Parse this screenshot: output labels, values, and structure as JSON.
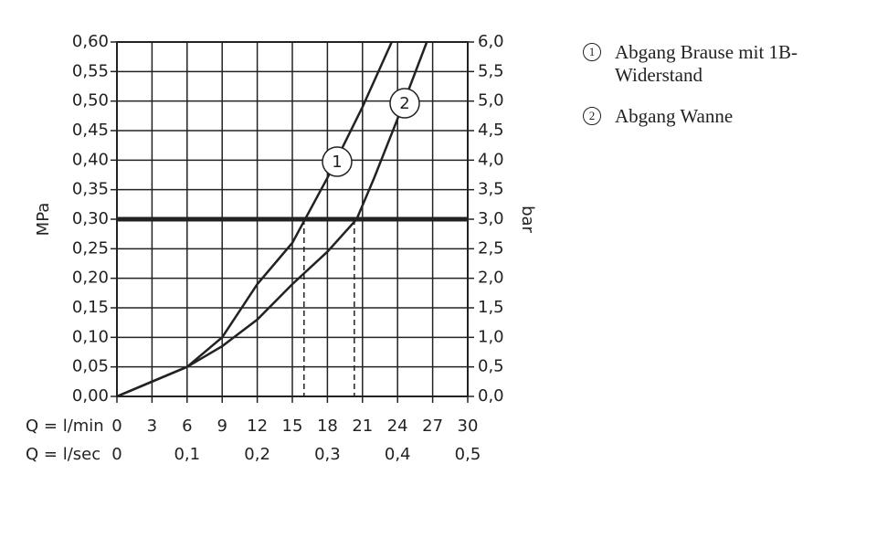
{
  "chart_data": {
    "type": "line",
    "ylabel": "MPa",
    "y2label": "bar",
    "xlabel": "Q = l/min",
    "x2label": "Q = l/sec",
    "xlim": [
      0,
      30
    ],
    "xticks": [
      0,
      3,
      6,
      9,
      12,
      15,
      18,
      21,
      24,
      27,
      30
    ],
    "x2lim": [
      0,
      0.5
    ],
    "x2ticks": [
      0,
      {
        "value": 0.1,
        "label": "0,1"
      },
      {
        "value": 0.2,
        "label": "0,2"
      },
      {
        "value": 0.3,
        "label": "0,3"
      },
      {
        "value": 0.4,
        "label": "0,4"
      },
      {
        "value": 0.5,
        "label": "0,5"
      }
    ],
    "ylim": [
      0,
      0.6
    ],
    "yticks": [
      {
        "value": 0,
        "label": "0,00"
      },
      {
        "value": 0.05,
        "label": "0,05"
      },
      {
        "value": 0.1,
        "label": "0,10"
      },
      {
        "value": 0.15,
        "label": "0,15"
      },
      {
        "value": 0.2,
        "label": "0,20"
      },
      {
        "value": 0.25,
        "label": "0,25"
      },
      {
        "value": 0.3,
        "label": "0,30"
      },
      {
        "value": 0.35,
        "label": "0,35"
      },
      {
        "value": 0.4,
        "label": "0,40"
      },
      {
        "value": 0.45,
        "label": "0,45"
      },
      {
        "value": 0.5,
        "label": "0,50"
      },
      {
        "value": 0.55,
        "label": "0,55"
      },
      {
        "value": 0.6,
        "label": "0,60"
      }
    ],
    "y2lim": [
      0,
      6
    ],
    "y2ticks": [
      {
        "value": 0,
        "label": "0,0"
      },
      {
        "value": 0.5,
        "label": "0,5"
      },
      {
        "value": 1,
        "label": "1,0"
      },
      {
        "value": 1.5,
        "label": "1,5"
      },
      {
        "value": 2,
        "label": "2,0"
      },
      {
        "value": 2.5,
        "label": "2,5"
      },
      {
        "value": 3,
        "label": "3,0"
      },
      {
        "value": 3.5,
        "label": "3,5"
      },
      {
        "value": 4,
        "label": "4,0"
      },
      {
        "value": 4.5,
        "label": "4,5"
      },
      {
        "value": 5,
        "label": "5,0"
      },
      {
        "value": 5.5,
        "label": "5,5"
      },
      {
        "value": 6,
        "label": "6,0"
      }
    ],
    "grid": true,
    "reference_lines": {
      "y": 0.3,
      "x": [
        16,
        20.3
      ]
    },
    "series": [
      {
        "name": "Abgang Brause mit 1B-Widerstand",
        "label": "1",
        "color": "#222222",
        "x": [
          0,
          3,
          6,
          9,
          12,
          15,
          18,
          21,
          23.5
        ],
        "values": [
          0,
          0.025,
          0.05,
          0.1,
          0.19,
          0.26,
          0.37,
          0.49,
          0.6
        ]
      },
      {
        "name": "Abgang Wanne",
        "label": "2",
        "color": "#222222",
        "x": [
          0,
          3,
          6,
          9,
          12,
          15,
          18,
          20.5,
          22,
          24,
          26.5
        ],
        "values": [
          0,
          0.025,
          0.05,
          0.085,
          0.13,
          0.19,
          0.245,
          0.3,
          0.37,
          0.47,
          0.6
        ]
      }
    ]
  }
}
